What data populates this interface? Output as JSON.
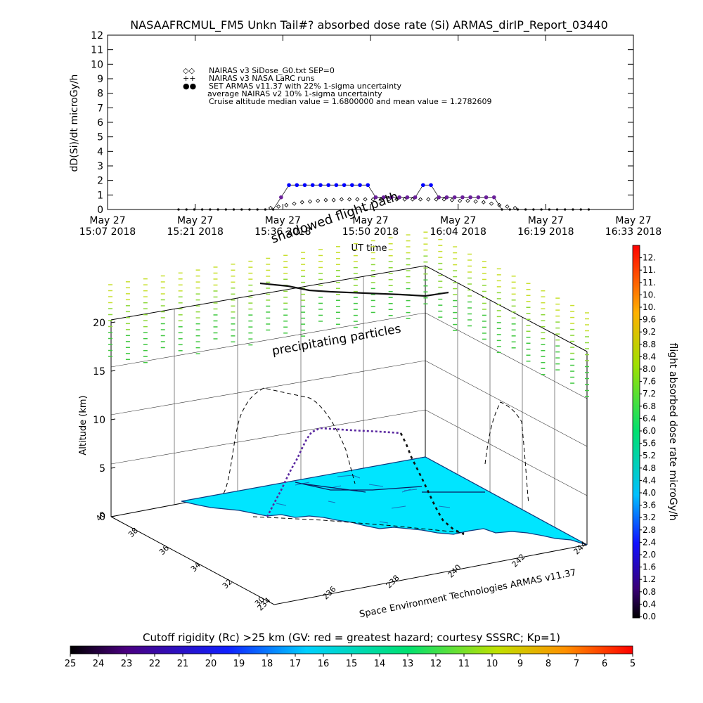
{
  "title": "NASAAFRCMUL_FM5 Unkn Tail#? absorbed dose rate (Si) ARMAS_dirIP_Report_03440",
  "chart_data": [
    {
      "type": "scatter",
      "ylabel": "dD(Si)/dt microGy/h",
      "xlabel": "UT time",
      "ylim": [
        0,
        12
      ],
      "y_ticks": [
        "0",
        "1",
        "2",
        "3",
        "4",
        "5",
        "6",
        "7",
        "8",
        "9",
        "10",
        "11",
        "12"
      ],
      "x_ticks": [
        {
          "date": "May 27",
          "time": "15:07 2018"
        },
        {
          "date": "May 27",
          "time": "15:21 2018"
        },
        {
          "date": "May 27",
          "time": "15:36 2018"
        },
        {
          "date": "May 27",
          "time": "15:50 2018"
        },
        {
          "date": "May 27",
          "time": "16:04 2018"
        },
        {
          "date": "May 27",
          "time": "16:19 2018"
        },
        {
          "date": "May 27",
          "time": "16:33 2018"
        }
      ],
      "legend": [
        {
          "symbol": "◇◇",
          "label": "NAIRAS v3 SiDose_G0.txt SEP=0"
        },
        {
          "symbol": "++",
          "label": "NAIRAS v3 NASA LaRC runs"
        },
        {
          "symbol": "●●",
          "label": "SET ARMAS v11.37 with 22% 1-sigma uncertainty",
          "color": "#0000ff"
        },
        {
          "symbol": "",
          "label": "average NAIRAS v2 10% 1-sigma uncertainty"
        },
        {
          "symbol": "",
          "label": "Cruise altitude median value = 1.6800000 and mean value = 1.2782609"
        }
      ],
      "series": [
        {
          "name": "SET ARMAS v11.37 with 22% 1-sigma uncertainty",
          "x": [
            13.5,
            15.0,
            16.5,
            18.0,
            19.5,
            21.0,
            22.5,
            24.0,
            25.5,
            27.0,
            28.5,
            30.0,
            31.5,
            33.0,
            34.5,
            36.0,
            37.5,
            39.0,
            40.5,
            42.0,
            43.5,
            45.0,
            46.5,
            48.0,
            49.5,
            51.0,
            52.5,
            54.0,
            55.5,
            57.0,
            58.5,
            60.0,
            61.5,
            63.0,
            64.5,
            66.0,
            67.5,
            69.0,
            70.5,
            72.0,
            73.5,
            75.0,
            76.5,
            78.0,
            79.5,
            81.0,
            82.5,
            84.0,
            85.5,
            87.0,
            88.5,
            90.0,
            91.5
          ],
          "y": [
            0,
            0,
            0,
            0,
            0,
            0,
            0,
            0,
            0,
            0,
            0,
            0,
            0,
            0.84,
            1.68,
            1.68,
            1.68,
            1.68,
            1.68,
            1.68,
            1.68,
            1.68,
            1.68,
            1.68,
            1.68,
            0.84,
            0.84,
            0.84,
            0.84,
            0.84,
            0.84,
            1.68,
            1.68,
            0.84,
            0.84,
            0.84,
            0.84,
            0.84,
            0.84,
            0.84,
            0.84,
            0,
            0,
            0,
            0,
            0,
            0,
            0,
            0,
            0,
            0,
            0,
            0
          ]
        },
        {
          "name": "NAIRAS v3 SiDose_G0.txt SEP=0",
          "x": [
            31,
            32.5,
            34,
            35.5,
            37,
            38.5,
            40,
            41.5,
            43,
            44.5,
            46,
            47.5,
            49,
            50.5,
            52,
            53.5,
            55,
            56.5,
            58,
            59.5,
            61,
            62.5,
            64,
            65.5,
            67,
            68.5,
            70,
            71.5,
            73,
            74.5,
            76,
            77.5
          ],
          "y": [
            0.1,
            0.2,
            0.3,
            0.4,
            0.5,
            0.55,
            0.6,
            0.65,
            0.65,
            0.7,
            0.7,
            0.7,
            0.7,
            0.7,
            0.7,
            0.7,
            0.7,
            0.7,
            0.7,
            0.7,
            0.7,
            0.7,
            0.7,
            0.65,
            0.6,
            0.6,
            0.55,
            0.5,
            0.4,
            0.3,
            0.2,
            0.1
          ]
        }
      ]
    },
    {
      "type": "scatter",
      "ylabel": "Altitude (km)",
      "z_ticks": [
        "0",
        "5",
        "10",
        "15",
        "20"
      ],
      "lat_ticks": [
        "30",
        "32",
        "34",
        "36",
        "38",
        "40"
      ],
      "lon_ticks": [
        "234",
        "236",
        "238",
        "240",
        "242",
        "244"
      ],
      "annotations": [
        "shadowed flight path",
        "precipitating particles"
      ],
      "credit": "Space Environment Technologies ARMAS v11.37"
    }
  ],
  "colorbar_right": {
    "label": "flight absorbed dose rate microGy/h",
    "ticks": [
      "0.0",
      "0.4",
      "0.8",
      "1.2",
      "1.6",
      "2.0",
      "2.4",
      "2.8",
      "3.2",
      "3.6",
      "4.0",
      "4.4",
      "4.8",
      "5.2",
      "5.6",
      "6.0",
      "6.4",
      "6.8",
      "7.2",
      "7.6",
      "8.0",
      "8.4",
      "8.8",
      "9.2",
      "9.6",
      "10.",
      "10.",
      "11.",
      "11.",
      "12."
    ]
  },
  "colorbar_bottom": {
    "label": "Cutoff rigidity (Rc) >25 km (GV: red = greatest hazard; courtesy SSSRC; Kp=1)",
    "ticks": [
      "25",
      "24",
      "23",
      "22",
      "21",
      "20",
      "19",
      "18",
      "17",
      "16",
      "15",
      "14",
      "13",
      "12",
      "11",
      "10",
      "9",
      "8",
      "7",
      "6",
      "5"
    ]
  },
  "colors": {
    "armas": "#0000ff",
    "surface": "#00e5ff",
    "particles": "#66cc33"
  }
}
